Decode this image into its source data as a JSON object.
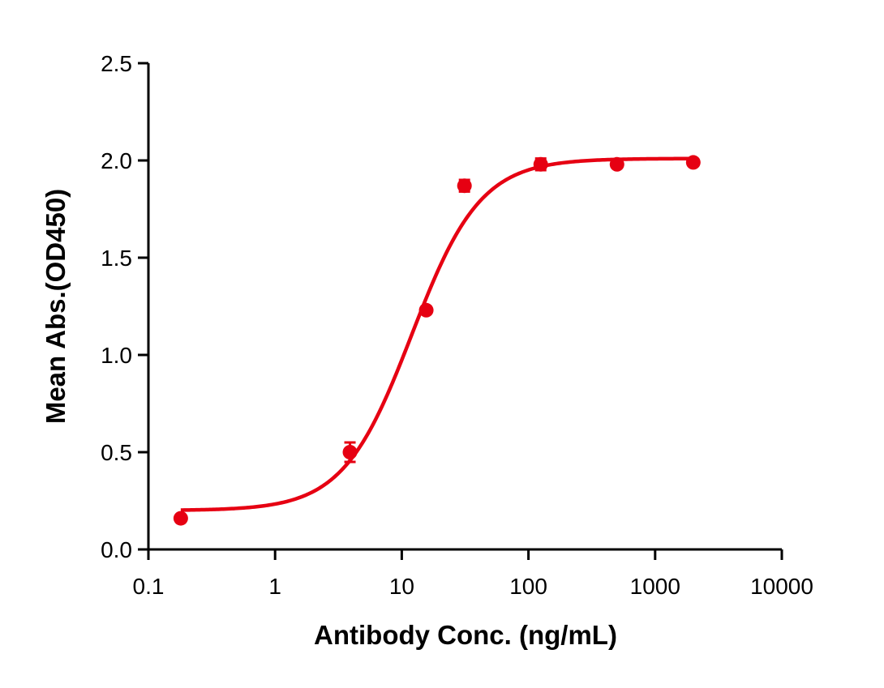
{
  "chart_data": {
    "type": "scatter",
    "title": "",
    "xlabel": "Antibody Conc. (ng/mL)",
    "ylabel": "Mean Abs.(OD450)",
    "xscale": "log",
    "xlim": [
      0.1,
      10000
    ],
    "ylim": [
      0,
      2.5
    ],
    "x_ticks": [
      0.1,
      1,
      10,
      100,
      1000,
      10000
    ],
    "x_tick_labels": [
      "0.1",
      "1",
      "10",
      "100",
      "1000",
      "10000"
    ],
    "y_ticks": [
      0,
      0.5,
      1.0,
      1.5,
      2.0,
      2.5
    ],
    "y_tick_labels": [
      "0.0",
      "0.5",
      "1.0",
      "1.5",
      "2.0",
      "2.5"
    ],
    "grid": false,
    "legend": null,
    "series": [
      {
        "name": "Mean Abs.",
        "color": "#e60012",
        "marker": "circle",
        "x": [
          0.18,
          3.9,
          15.6,
          31.25,
          125,
          500,
          2000
        ],
        "y": [
          0.16,
          0.5,
          1.23,
          1.87,
          1.98,
          1.98,
          1.99
        ],
        "error": [
          0.01,
          0.05,
          0.01,
          0.03,
          0.03,
          0.01,
          0.01
        ]
      }
    ],
    "fit": {
      "type": "4PL",
      "color": "#e60012",
      "bottom": 0.2,
      "top": 2.01,
      "ec50": 12,
      "hill": 1.6,
      "x_range": [
        0.18,
        2000
      ]
    }
  },
  "labels": {
    "xlabel": "Antibody Conc. (ng/mL)",
    "ylabel": "Mean Abs.(OD450)"
  }
}
